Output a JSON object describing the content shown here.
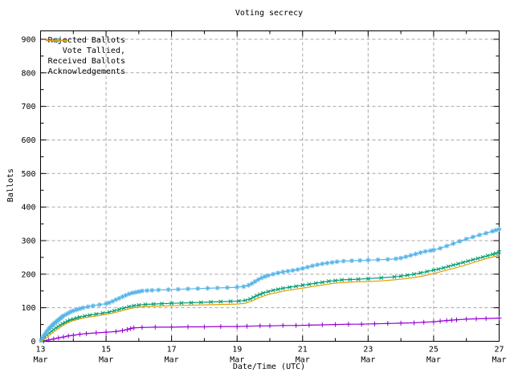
{
  "chart_data": {
    "type": "line",
    "title": "Voting secrecy",
    "xlabel": "Date/Time (UTC)",
    "ylabel": "Ballots",
    "grid": true,
    "legend_position": "top-left-inside",
    "background": "#ffffff",
    "border_color": "#000000",
    "grid_color": "#a6a6a6",
    "x_range": [
      13,
      27
    ],
    "y_range": [
      0,
      925
    ],
    "y_major_ticks": [
      0,
      100,
      200,
      300,
      400,
      500,
      600,
      700,
      800,
      900
    ],
    "y_minor_ticks": [
      50,
      150,
      250,
      350,
      450,
      550,
      650,
      750,
      850
    ],
    "x_major_ticks": [
      {
        "day": 13,
        "label": "13",
        "month": "Mar"
      },
      {
        "day": 15,
        "label": "15",
        "month": "Mar"
      },
      {
        "day": 17,
        "label": "17",
        "month": "Mar"
      },
      {
        "day": 19,
        "label": "19",
        "month": "Mar"
      },
      {
        "day": 21,
        "label": "21",
        "month": "Mar"
      },
      {
        "day": 23,
        "label": "23",
        "month": "Mar"
      },
      {
        "day": 25,
        "label": "25",
        "month": "Mar"
      },
      {
        "day": 27,
        "label": "27",
        "month": "Mar"
      }
    ],
    "x_minor_tick_days": [
      14,
      16,
      18,
      20,
      22,
      24,
      26
    ],
    "x_grid_days": [
      15,
      17,
      19,
      21,
      23,
      25
    ],
    "series": [
      {
        "name": "Rejected Ballots",
        "color": "#9400d3",
        "marker": "plus",
        "points": [
          [
            13.1,
            1
          ],
          [
            13.25,
            4
          ],
          [
            13.4,
            7
          ],
          [
            13.55,
            10
          ],
          [
            13.7,
            13
          ],
          [
            13.85,
            16
          ],
          [
            14.0,
            18
          ],
          [
            14.2,
            21
          ],
          [
            14.4,
            23
          ],
          [
            14.7,
            25
          ],
          [
            15.0,
            27
          ],
          [
            15.3,
            29
          ],
          [
            15.5,
            32
          ],
          [
            15.65,
            35
          ],
          [
            15.75,
            38
          ],
          [
            15.85,
            40
          ],
          [
            16.1,
            41
          ],
          [
            16.5,
            42
          ],
          [
            17.0,
            42
          ],
          [
            17.5,
            43
          ],
          [
            18.0,
            43
          ],
          [
            18.5,
            44
          ],
          [
            19.0,
            44
          ],
          [
            19.3,
            45
          ],
          [
            19.7,
            46
          ],
          [
            20.0,
            46
          ],
          [
            20.4,
            47
          ],
          [
            20.8,
            47
          ],
          [
            21.2,
            48
          ],
          [
            21.6,
            49
          ],
          [
            22.0,
            50
          ],
          [
            22.4,
            51
          ],
          [
            22.8,
            51
          ],
          [
            23.2,
            52
          ],
          [
            23.6,
            53
          ],
          [
            24.0,
            54
          ],
          [
            24.4,
            55
          ],
          [
            24.7,
            57
          ],
          [
            25.0,
            58
          ],
          [
            25.2,
            60
          ],
          [
            25.4,
            62
          ],
          [
            25.55,
            63
          ],
          [
            25.7,
            64
          ],
          [
            26.0,
            66
          ],
          [
            26.3,
            67
          ],
          [
            26.6,
            68
          ],
          [
            27.0,
            69
          ]
        ]
      },
      {
        "name": "Vote Tallied,",
        "color": "#009e73",
        "marker": "cross",
        "points": [
          [
            13.03,
            2
          ],
          [
            13.08,
            7
          ],
          [
            13.13,
            13
          ],
          [
            13.2,
            19
          ],
          [
            13.27,
            25
          ],
          [
            13.34,
            30
          ],
          [
            13.4,
            35
          ],
          [
            13.47,
            40
          ],
          [
            13.54,
            44
          ],
          [
            13.6,
            48
          ],
          [
            13.67,
            52
          ],
          [
            13.75,
            56
          ],
          [
            13.82,
            60
          ],
          [
            13.9,
            63
          ],
          [
            14.0,
            66
          ],
          [
            14.1,
            69
          ],
          [
            14.2,
            72
          ],
          [
            14.35,
            75
          ],
          [
            14.5,
            78
          ],
          [
            14.7,
            81
          ],
          [
            14.9,
            84
          ],
          [
            15.1,
            87
          ],
          [
            15.25,
            91
          ],
          [
            15.4,
            95
          ],
          [
            15.55,
            99
          ],
          [
            15.7,
            103
          ],
          [
            15.85,
            106
          ],
          [
            16.0,
            108
          ],
          [
            16.2,
            110
          ],
          [
            16.45,
            111
          ],
          [
            16.7,
            112
          ],
          [
            17.0,
            113
          ],
          [
            17.3,
            114
          ],
          [
            17.6,
            115
          ],
          [
            17.9,
            116
          ],
          [
            18.2,
            117
          ],
          [
            18.5,
            118
          ],
          [
            18.8,
            119
          ],
          [
            19.05,
            120
          ],
          [
            19.25,
            122
          ],
          [
            19.4,
            126
          ],
          [
            19.5,
            131
          ],
          [
            19.6,
            136
          ],
          [
            19.7,
            140
          ],
          [
            19.8,
            144
          ],
          [
            19.95,
            148
          ],
          [
            20.1,
            152
          ],
          [
            20.25,
            155
          ],
          [
            20.4,
            158
          ],
          [
            20.6,
            161
          ],
          [
            20.8,
            164
          ],
          [
            21.0,
            167
          ],
          [
            21.2,
            170
          ],
          [
            21.4,
            173
          ],
          [
            21.6,
            176
          ],
          [
            21.8,
            179
          ],
          [
            22.0,
            181
          ],
          [
            22.2,
            183
          ],
          [
            22.45,
            184
          ],
          [
            22.7,
            185
          ],
          [
            23.0,
            187
          ],
          [
            23.4,
            189
          ],
          [
            23.8,
            192
          ],
          [
            24.0,
            194
          ],
          [
            24.2,
            197
          ],
          [
            24.4,
            200
          ],
          [
            24.6,
            204
          ],
          [
            24.8,
            208
          ],
          [
            25.0,
            212
          ],
          [
            25.15,
            215
          ],
          [
            25.3,
            219
          ],
          [
            25.45,
            223
          ],
          [
            25.6,
            227
          ],
          [
            25.75,
            231
          ],
          [
            25.9,
            235
          ],
          [
            26.05,
            239
          ],
          [
            26.2,
            243
          ],
          [
            26.35,
            247
          ],
          [
            26.5,
            251
          ],
          [
            26.65,
            255
          ],
          [
            26.8,
            259
          ],
          [
            26.9,
            262
          ],
          [
            27.0,
            266
          ]
        ]
      },
      {
        "name": "Received Ballots",
        "color": "#56b4e9",
        "marker": "asterisk",
        "points": [
          [
            13.02,
            3
          ],
          [
            13.06,
            10
          ],
          [
            13.1,
            17
          ],
          [
            13.15,
            24
          ],
          [
            13.2,
            31
          ],
          [
            13.25,
            37
          ],
          [
            13.3,
            42
          ],
          [
            13.35,
            47
          ],
          [
            13.4,
            52
          ],
          [
            13.45,
            56
          ],
          [
            13.5,
            60
          ],
          [
            13.55,
            64
          ],
          [
            13.6,
            68
          ],
          [
            13.65,
            72
          ],
          [
            13.7,
            76
          ],
          [
            13.78,
            80
          ],
          [
            13.85,
            84
          ],
          [
            13.92,
            88
          ],
          [
            14.0,
            91
          ],
          [
            14.1,
            94
          ],
          [
            14.2,
            97
          ],
          [
            14.3,
            100
          ],
          [
            14.45,
            103
          ],
          [
            14.6,
            106
          ],
          [
            14.8,
            109
          ],
          [
            15.0,
            112
          ],
          [
            15.1,
            115
          ],
          [
            15.2,
            119
          ],
          [
            15.3,
            124
          ],
          [
            15.4,
            128
          ],
          [
            15.5,
            133
          ],
          [
            15.6,
            137
          ],
          [
            15.7,
            141
          ],
          [
            15.8,
            144
          ],
          [
            15.9,
            146
          ],
          [
            16.0,
            148
          ],
          [
            16.1,
            150
          ],
          [
            16.25,
            151
          ],
          [
            16.4,
            152
          ],
          [
            16.6,
            153
          ],
          [
            16.9,
            154
          ],
          [
            17.2,
            155
          ],
          [
            17.5,
            156
          ],
          [
            17.8,
            157
          ],
          [
            18.1,
            158
          ],
          [
            18.4,
            159
          ],
          [
            18.7,
            160
          ],
          [
            19.0,
            161
          ],
          [
            19.2,
            163
          ],
          [
            19.35,
            167
          ],
          [
            19.45,
            172
          ],
          [
            19.55,
            178
          ],
          [
            19.65,
            184
          ],
          [
            19.75,
            189
          ],
          [
            19.85,
            193
          ],
          [
            19.95,
            196
          ],
          [
            20.1,
            200
          ],
          [
            20.25,
            204
          ],
          [
            20.4,
            207
          ],
          [
            20.55,
            209
          ],
          [
            20.7,
            211
          ],
          [
            20.85,
            214
          ],
          [
            21.0,
            217
          ],
          [
            21.15,
            221
          ],
          [
            21.3,
            225
          ],
          [
            21.45,
            228
          ],
          [
            21.6,
            231
          ],
          [
            21.75,
            233
          ],
          [
            21.9,
            235
          ],
          [
            22.05,
            237
          ],
          [
            22.25,
            239
          ],
          [
            22.5,
            240
          ],
          [
            22.75,
            241
          ],
          [
            23.0,
            242
          ],
          [
            23.3,
            243
          ],
          [
            23.6,
            244
          ],
          [
            23.85,
            246
          ],
          [
            24.0,
            248
          ],
          [
            24.15,
            252
          ],
          [
            24.3,
            256
          ],
          [
            24.45,
            260
          ],
          [
            24.6,
            264
          ],
          [
            24.75,
            268
          ],
          [
            24.9,
            270
          ],
          [
            25.0,
            272
          ],
          [
            25.2,
            277
          ],
          [
            25.4,
            284
          ],
          [
            25.6,
            291
          ],
          [
            25.8,
            298
          ],
          [
            26.0,
            305
          ],
          [
            26.2,
            311
          ],
          [
            26.4,
            317
          ],
          [
            26.6,
            322
          ],
          [
            26.8,
            328
          ],
          [
            26.9,
            331
          ],
          [
            27.0,
            334
          ]
        ]
      },
      {
        "name": "Acknowledgements",
        "color": "#e69f00",
        "marker": "none",
        "points": [
          [
            13.03,
            0
          ],
          [
            13.1,
            5
          ],
          [
            13.2,
            12
          ],
          [
            13.3,
            20
          ],
          [
            13.4,
            28
          ],
          [
            13.5,
            35
          ],
          [
            13.6,
            42
          ],
          [
            13.7,
            48
          ],
          [
            13.8,
            54
          ],
          [
            13.9,
            58
          ],
          [
            14.0,
            62
          ],
          [
            14.2,
            67
          ],
          [
            14.4,
            71
          ],
          [
            14.6,
            74
          ],
          [
            14.8,
            77
          ],
          [
            15.0,
            80
          ],
          [
            15.2,
            84
          ],
          [
            15.4,
            89
          ],
          [
            15.6,
            94
          ],
          [
            15.8,
            99
          ],
          [
            16.0,
            102
          ],
          [
            16.3,
            104
          ],
          [
            16.6,
            105
          ],
          [
            17.0,
            106
          ],
          [
            17.4,
            107
          ],
          [
            17.8,
            108
          ],
          [
            18.2,
            109
          ],
          [
            18.6,
            110
          ],
          [
            19.0,
            111
          ],
          [
            19.25,
            113
          ],
          [
            19.45,
            120
          ],
          [
            19.6,
            127
          ],
          [
            19.75,
            133
          ],
          [
            19.9,
            138
          ],
          [
            20.1,
            143
          ],
          [
            20.3,
            147
          ],
          [
            20.5,
            151
          ],
          [
            20.7,
            154
          ],
          [
            20.9,
            157
          ],
          [
            21.1,
            160
          ],
          [
            21.3,
            163
          ],
          [
            21.5,
            166
          ],
          [
            21.7,
            169
          ],
          [
            21.9,
            172
          ],
          [
            22.1,
            174
          ],
          [
            22.35,
            176
          ],
          [
            22.6,
            177
          ],
          [
            23.0,
            178
          ],
          [
            23.4,
            180
          ],
          [
            23.8,
            183
          ],
          [
            24.1,
            186
          ],
          [
            24.4,
            190
          ],
          [
            24.7,
            195
          ],
          [
            25.0,
            202
          ],
          [
            25.2,
            207
          ],
          [
            25.4,
            212
          ],
          [
            25.6,
            217
          ],
          [
            25.8,
            222
          ],
          [
            26.0,
            228
          ],
          [
            26.2,
            234
          ],
          [
            26.4,
            240
          ],
          [
            26.6,
            246
          ],
          [
            26.8,
            251
          ],
          [
            27.0,
            257
          ]
        ]
      }
    ]
  }
}
